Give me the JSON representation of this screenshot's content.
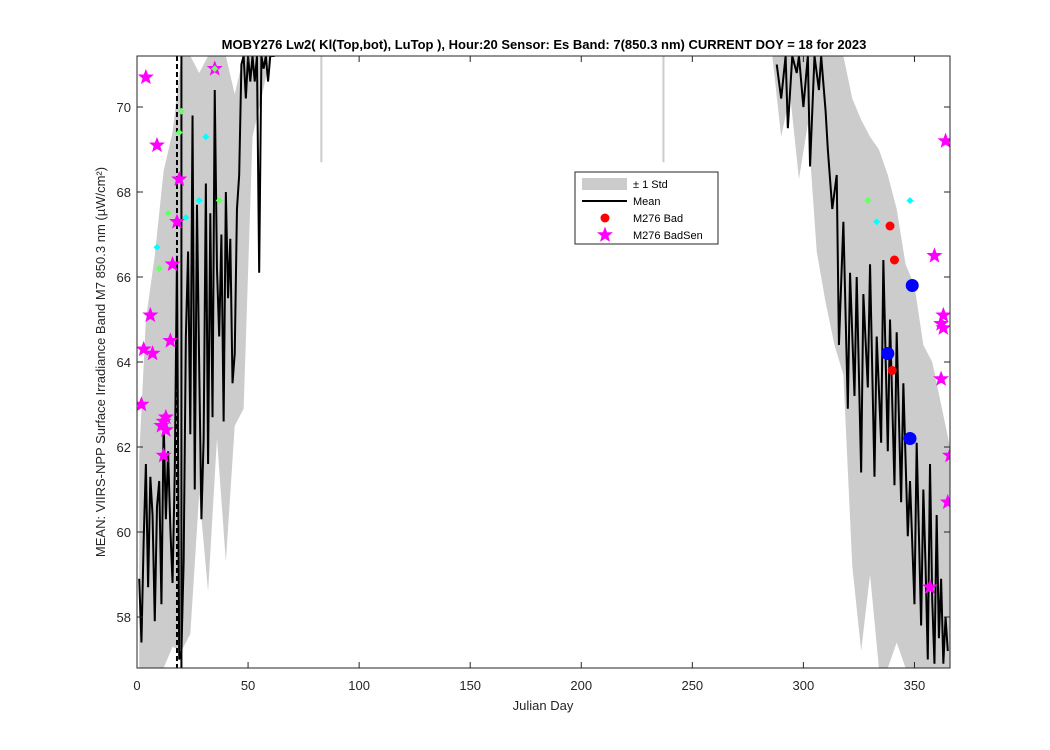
{
  "chart_data": {
    "type": "line",
    "title": "MOBY276   Lw2( Kl(Top,bot), LuTop ),   Hour:20 Sensor: Es Band: 7(850.3 nm)   CURRENT DOY = 18 for 2023",
    "xlabel": "Julian Day",
    "ylabel": "MEAN: VIIRS-NPP Surface Irradiance Band M7 850.3 nm (µW/cm²)",
    "xlim": [
      0,
      366
    ],
    "ylim": [
      56.8,
      71.2
    ],
    "xticks": [
      0,
      50,
      100,
      150,
      200,
      250,
      300,
      350
    ],
    "yticks": [
      58,
      60,
      62,
      64,
      66,
      68,
      70
    ],
    "current_doy": 18,
    "vline_solid_x": 20,
    "grid": false,
    "legend": {
      "placement": "center-right",
      "entries": [
        {
          "label": "± 1 Std",
          "kind": "patch",
          "color": "#cccccc"
        },
        {
          "label": "Mean",
          "kind": "line",
          "color": "#000000"
        },
        {
          "label": "M276 Bad",
          "kind": "circle",
          "color": "#ff0000"
        },
        {
          "label": "M276 BadSen",
          "kind": "star",
          "color": "#ff00ff"
        }
      ]
    },
    "mean_segments": [
      {
        "x": [
          1,
          2,
          3,
          4,
          5,
          6,
          7,
          8,
          9,
          10,
          11,
          12,
          13,
          14,
          15,
          16,
          17,
          18,
          19,
          20,
          21,
          22,
          23,
          24,
          25,
          26,
          27,
          28,
          29,
          30,
          31,
          32,
          33,
          34,
          35,
          36,
          37,
          38,
          39,
          40,
          41,
          42,
          43,
          44,
          45,
          46,
          47,
          48,
          49,
          50,
          51,
          52,
          53,
          54,
          55,
          56,
          57,
          58,
          59,
          60,
          61,
          62
        ],
        "y": [
          58.9,
          57.4,
          59.8,
          61.6,
          58.7,
          61.3,
          60.4,
          57.9,
          60.6,
          61.2,
          58.3,
          62.6,
          60.3,
          61.9,
          60.1,
          58.8,
          61.4,
          66.5,
          57.0,
          57.2,
          59.3,
          64.6,
          66.6,
          62.3,
          69.8,
          61.0,
          67.7,
          63.9,
          60.3,
          62.2,
          68.2,
          61.6,
          67.5,
          62.7,
          70.4,
          66.2,
          64.6,
          67.0,
          62.6,
          68.0,
          65.5,
          66.9,
          63.5,
          64.2,
          67.6,
          68.4,
          71.0,
          71.2,
          70.2,
          71.2,
          70.6,
          71.2,
          70.6,
          71.2,
          66.1,
          71.2,
          70.9,
          71.2,
          70.6,
          71.2,
          71.2,
          71.2
        ]
      },
      {
        "x": [
          288,
          290,
          292,
          293,
          295,
          297,
          298,
          300,
          302,
          303,
          305,
          307,
          308,
          310,
          311,
          313,
          315,
          316,
          318,
          320,
          321,
          323,
          324,
          326,
          327,
          329,
          330,
          332,
          333,
          335,
          336,
          338,
          339,
          341,
          342,
          344,
          345,
          347,
          348,
          350,
          351,
          353,
          354,
          355,
          356,
          357,
          358,
          359,
          360,
          361,
          362,
          363,
          364,
          365
        ],
        "y": [
          71.0,
          70.2,
          71.2,
          69.5,
          71.2,
          70.8,
          71.2,
          70.0,
          71.2,
          68.6,
          71.2,
          70.4,
          71.2,
          69.9,
          69.0,
          67.6,
          68.4,
          64.4,
          67.3,
          62.9,
          66.1,
          63.2,
          66.0,
          61.4,
          65.6,
          63.4,
          66.3,
          61.3,
          64.6,
          62.1,
          66.4,
          61.9,
          65.0,
          61.1,
          64.7,
          60.7,
          63.5,
          59.9,
          61.2,
          58.3,
          62.1,
          57.8,
          61.0,
          59.2,
          57.0,
          61.6,
          58.4,
          56.9,
          60.4,
          57.5,
          58.9,
          56.9,
          58.0,
          57.2
        ]
      }
    ],
    "std_upper": [
      {
        "x": [
          1,
          4,
          8,
          12,
          16,
          20,
          24,
          28,
          32,
          36,
          40,
          44,
          48,
          52,
          56,
          60,
          64
        ],
        "y": [
          61.8,
          65.0,
          66.5,
          68.5,
          69.4,
          71.2,
          71.2,
          70.8,
          71.2,
          71.2,
          71.2,
          70.3,
          71.2,
          71.2,
          71.2,
          71.2,
          71.2
        ]
      },
      {
        "x": [
          286,
          290,
          294,
          298,
          302,
          306,
          310,
          314,
          318,
          322,
          326,
          330,
          334,
          338,
          342,
          346,
          350,
          354,
          358,
          362,
          366
        ],
        "y": [
          71.2,
          71.2,
          71.2,
          71.2,
          71.2,
          71.2,
          71.2,
          71.2,
          71.2,
          70.2,
          69.7,
          69.3,
          69.0,
          68.4,
          67.6,
          66.3,
          65.8,
          64.4,
          64.0,
          63.0,
          62.0
        ]
      }
    ],
    "std_lower": [
      {
        "x": [
          1,
          4,
          8,
          12,
          16,
          20,
          24,
          28,
          32,
          36,
          40,
          44,
          48,
          52,
          56,
          60,
          64
        ],
        "y": [
          56.8,
          56.8,
          56.8,
          56.8,
          57.3,
          57.2,
          57.6,
          60.9,
          58.6,
          62.2,
          59.3,
          62.5,
          62.9,
          69.3,
          70.2,
          71.2,
          71.2
        ]
      },
      {
        "x": [
          286,
          290,
          294,
          298,
          302,
          306,
          310,
          314,
          318,
          322,
          326,
          330,
          334,
          338,
          342,
          346,
          350,
          354,
          358,
          362,
          366
        ],
        "y": [
          71.2,
          69.3,
          70.3,
          68.3,
          69.6,
          66.6,
          65.4,
          64.4,
          63.7,
          59.2,
          57.2,
          59.0,
          56.8,
          56.8,
          57.4,
          56.8,
          56.8,
          56.8,
          56.8,
          56.8,
          56.8
        ]
      }
    ],
    "std_spikes": [
      {
        "x": 83,
        "y1": 71.2,
        "y2": 68.7
      },
      {
        "x": 237,
        "y1": 71.2,
        "y2": 68.7
      }
    ],
    "series": [
      {
        "name": "M276 BadSen",
        "marker": "star",
        "color": "#ff00ff",
        "points": [
          [
            2,
            63.0
          ],
          [
            3,
            64.3
          ],
          [
            4,
            70.7
          ],
          [
            6,
            65.1
          ],
          [
            7,
            64.2
          ],
          [
            9,
            69.1
          ],
          [
            11,
            62.5
          ],
          [
            12,
            62.6
          ],
          [
            12,
            61.8
          ],
          [
            13,
            62.7
          ],
          [
            13,
            62.4
          ],
          [
            15,
            64.5
          ],
          [
            16,
            66.3
          ],
          [
            18,
            67.3
          ],
          [
            19,
            68.3
          ],
          [
            35,
            70.9
          ],
          [
            357,
            58.7
          ],
          [
            359,
            66.5
          ],
          [
            362,
            63.6
          ],
          [
            362,
            64.9
          ],
          [
            363,
            64.8
          ],
          [
            364,
            69.2
          ],
          [
            365,
            60.7
          ],
          [
            366,
            61.8
          ],
          [
            363,
            65.1
          ]
        ]
      },
      {
        "name": "M276 Bad",
        "marker": "circle",
        "color": "#ff0000",
        "points": [
          [
            339,
            67.2
          ],
          [
            341,
            66.4
          ],
          [
            340,
            63.8
          ]
        ]
      },
      {
        "marker": "circle-large",
        "color": "#0000ff",
        "points": [
          [
            338,
            64.2
          ],
          [
            348,
            62.2
          ],
          [
            349,
            65.8
          ]
        ]
      },
      {
        "marker": "diamond",
        "color": "#00ffff",
        "points": [
          [
            9,
            66.7
          ],
          [
            22,
            67.4
          ],
          [
            28,
            67.8
          ],
          [
            31,
            69.3
          ],
          [
            333,
            67.3
          ],
          [
            348,
            67.8
          ]
        ]
      },
      {
        "marker": "diamond",
        "color": "#66ff66",
        "points": [
          [
            10,
            66.2
          ],
          [
            14,
            67.5
          ],
          [
            19,
            69.4
          ],
          [
            20,
            69.9
          ],
          [
            35,
            70.9
          ],
          [
            37,
            67.8
          ],
          [
            329,
            67.8
          ]
        ]
      }
    ]
  }
}
